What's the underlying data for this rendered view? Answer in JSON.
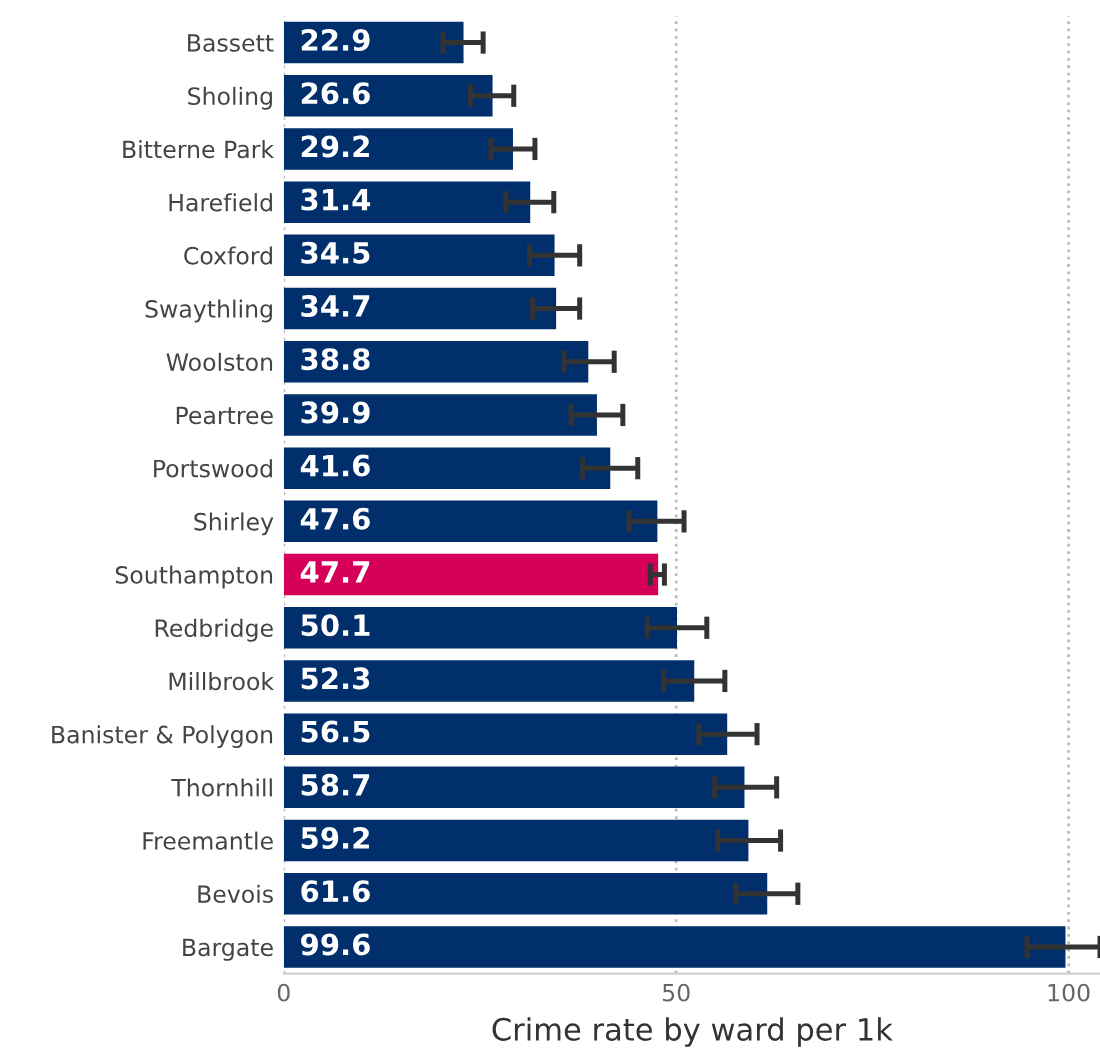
{
  "chart_data": {
    "type": "bar",
    "orientation": "horizontal",
    "xlabel": "Crime rate by ward per 1k",
    "categories": [
      "Bassett",
      "Sholing",
      "Bitterne Park",
      "Harefield",
      "Coxford",
      "Swaythling",
      "Woolston",
      "Peartree",
      "Portswood",
      "Shirley",
      "Southampton",
      "Redbridge",
      "Millbrook",
      "Banister & Polygon",
      "Thornhill",
      "Freemantle",
      "Bevois",
      "Bargate"
    ],
    "values": [
      22.9,
      26.6,
      29.2,
      31.4,
      34.5,
      34.7,
      38.8,
      39.9,
      41.6,
      47.6,
      47.7,
      50.1,
      52.3,
      56.5,
      58.7,
      59.2,
      61.6,
      99.6
    ],
    "colors": [
      "#002f6c",
      "#002f6c",
      "#002f6c",
      "#002f6c",
      "#002f6c",
      "#002f6c",
      "#002f6c",
      "#002f6c",
      "#002f6c",
      "#002f6c",
      "#d6005a",
      "#002f6c",
      "#002f6c",
      "#002f6c",
      "#002f6c",
      "#002f6c",
      "#002f6c",
      "#002f6c"
    ],
    "errors": [
      [
        20.3,
        25.4
      ],
      [
        23.8,
        29.3
      ],
      [
        26.4,
        32.0
      ],
      [
        28.3,
        34.4
      ],
      [
        31.3,
        37.7
      ],
      [
        31.7,
        37.7
      ],
      [
        35.7,
        42.1
      ],
      [
        36.6,
        43.2
      ],
      [
        38.1,
        45.1
      ],
      [
        44.0,
        51.0
      ],
      [
        46.7,
        48.5
      ],
      [
        46.3,
        53.9
      ],
      [
        48.4,
        56.2
      ],
      [
        52.9,
        60.3
      ],
      [
        54.9,
        62.8
      ],
      [
        55.3,
        63.3
      ],
      [
        57.6,
        65.5
      ],
      [
        94.7,
        104
      ]
    ],
    "xlim": [
      0,
      104
    ],
    "xticks": [
      0,
      50,
      100
    ],
    "grid": "x",
    "data_labels": true,
    "legend": false
  }
}
